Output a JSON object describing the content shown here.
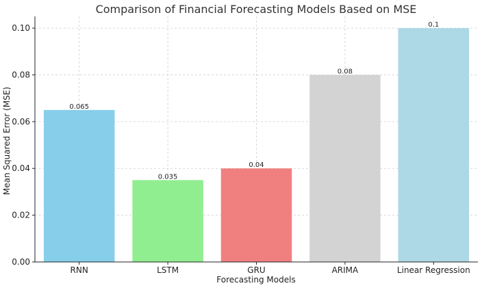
{
  "chart_data": {
    "type": "bar",
    "title": "Comparison of Financial Forecasting Models Based on MSE",
    "xlabel": "Forecasting Models",
    "ylabel": "Mean Squared Error (MSE)",
    "categories": [
      "RNN",
      "LSTM",
      "GRU",
      "ARIMA",
      "Linear Regression"
    ],
    "values": [
      0.065,
      0.035,
      0.04,
      0.08,
      0.1
    ],
    "value_labels": [
      "0.065",
      "0.035",
      "0.04",
      "0.08",
      "0.1"
    ],
    "colors": [
      "#87ceeb",
      "#90ee90",
      "#f08080",
      "#d3d3d3",
      "#add8e6"
    ],
    "ylim": [
      0,
      0.105
    ],
    "yticks": [
      0,
      0.02,
      0.04,
      0.06,
      0.08,
      0.1
    ],
    "ytick_labels": [
      "0.00",
      "0.02",
      "0.04",
      "0.06",
      "0.08",
      "0.10"
    ],
    "grid": true,
    "legend": "none"
  }
}
